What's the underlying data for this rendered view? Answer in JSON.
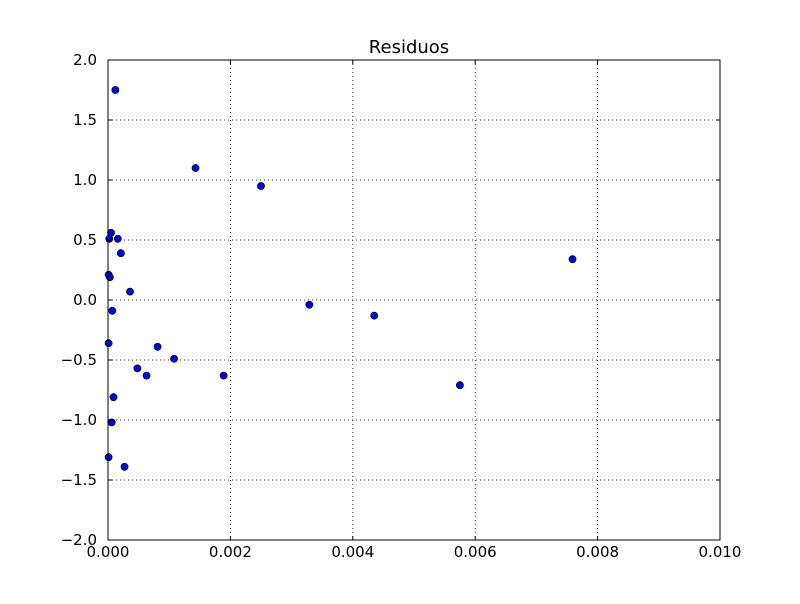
{
  "chart_data": {
    "type": "scatter",
    "title": "Residuos",
    "xlabel": "",
    "ylabel": "",
    "xlim": [
      0.0,
      0.01
    ],
    "ylim": [
      -2.0,
      2.0
    ],
    "grid": true,
    "marker_color": "#0000ff",
    "x_ticks": [
      0.0,
      0.002,
      0.004,
      0.006,
      0.008,
      0.01
    ],
    "x_tick_labels": [
      "0.000",
      "0.002",
      "0.004",
      "0.006",
      "0.008",
      "0.010"
    ],
    "y_ticks": [
      -2.0,
      -1.5,
      -1.0,
      -0.5,
      0.0,
      0.5,
      1.0,
      1.5,
      2.0
    ],
    "y_tick_labels": [
      "−2.0",
      "−1.5",
      "−1.0",
      "−0.5",
      "0.0",
      "0.5",
      "1.0",
      "1.5",
      "2.0"
    ],
    "series": [
      {
        "points": [
          {
            "x": 0.00012,
            "y": 1.75
          },
          {
            "x": 0.00143,
            "y": 1.1
          },
          {
            "x": 0.0025,
            "y": 0.95
          },
          {
            "x": 5e-05,
            "y": 0.56
          },
          {
            "x": 2e-05,
            "y": 0.51
          },
          {
            "x": 0.00016,
            "y": 0.51
          },
          {
            "x": 0.00021,
            "y": 0.39
          },
          {
            "x": 1e-05,
            "y": 0.21
          },
          {
            "x": 3e-05,
            "y": 0.19
          },
          {
            "x": 0.00036,
            "y": 0.07
          },
          {
            "x": 7e-05,
            "y": -0.09
          },
          {
            "x": 1e-05,
            "y": -0.36
          },
          {
            "x": 0.00081,
            "y": -0.39
          },
          {
            "x": 0.00108,
            "y": -0.49
          },
          {
            "x": 0.00048,
            "y": -0.57
          },
          {
            "x": 0.00063,
            "y": -0.63
          },
          {
            "x": 0.00189,
            "y": -0.63
          },
          {
            "x": 9e-05,
            "y": -0.81
          },
          {
            "x": 6e-05,
            "y": -1.02
          },
          {
            "x": 1e-05,
            "y": -1.31
          },
          {
            "x": 0.00027,
            "y": -1.39
          },
          {
            "x": 0.00329,
            "y": -0.04
          },
          {
            "x": 0.00435,
            "y": -0.13
          },
          {
            "x": 0.00575,
            "y": -0.71
          },
          {
            "x": 0.00759,
            "y": 0.34
          }
        ]
      }
    ]
  }
}
